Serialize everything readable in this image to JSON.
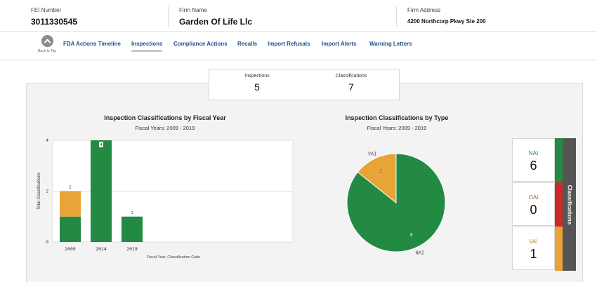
{
  "header": {
    "fei_label": "FEI Number",
    "fei_value": "3011330545",
    "firm_name_label": "Firm Name",
    "firm_name_value": "Garden Of Life Llc",
    "firm_address_label": "Firm Address",
    "firm_address_value": "4200 Northcorp Pkwy Ste 200"
  },
  "nav": {
    "back_to_top": "Back to Top",
    "items": [
      {
        "label": "FDA Actions Timeline"
      },
      {
        "label": "Inspections"
      },
      {
        "label": "Compliance Actions"
      },
      {
        "label": "Recalls"
      },
      {
        "label": "Import Refusals"
      },
      {
        "label": "Import Alerts"
      },
      {
        "label": "Warning Letters"
      }
    ],
    "active": "Inspections"
  },
  "summary": {
    "inspections_label": "Inspections",
    "inspections_value": "5",
    "classifications_label": "Classifications",
    "classifications_value": "7"
  },
  "colors": {
    "NAI": "#238a43",
    "OAI": "#cc2a2a",
    "VAI": "#e8a436",
    "nav_link": "#1f4f8f",
    "side_panel": "#555555"
  },
  "chart_data": [
    {
      "type": "bar",
      "title": "Inspection Classifications by Fiscal Year",
      "subtitle": "Fiscal Years: 2009 - 2019",
      "xlabel": "Fiscal Year, Classification Code",
      "ylabel": "Total Classifications",
      "categories": [
        "2009",
        "2014",
        "2019"
      ],
      "series": [
        {
          "name": "NAI",
          "values": [
            1,
            4,
            1
          ]
        },
        {
          "name": "VAI",
          "values": [
            1,
            0,
            0
          ]
        }
      ],
      "totals": [
        "2",
        "4",
        "1"
      ],
      "yticks": [
        "0",
        "2",
        "4"
      ],
      "ylim": [
        0,
        4
      ],
      "stacked": true
    },
    {
      "type": "pie",
      "title": "Inspection Classifications by Type",
      "subtitle": "Fiscal Years: 2009 - 2019",
      "slices": [
        {
          "label": "NAI",
          "value": 6
        },
        {
          "label": "VAI",
          "value": 1
        }
      ]
    }
  ],
  "classifications": {
    "side_label": "Classifications",
    "cards": [
      {
        "label": "NAI",
        "value": "6"
      },
      {
        "label": "OAI",
        "value": "0"
      },
      {
        "label": "VAI",
        "value": "1"
      }
    ]
  }
}
